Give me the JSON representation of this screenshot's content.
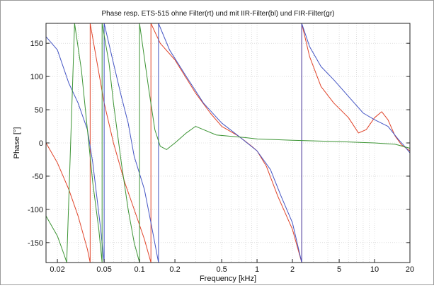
{
  "chart_data": {
    "type": "line",
    "title": "Phase resp.     ETS-515 ohne Filter(rt) und mit IIR-Filter(bl) und FIR-Filter(gr)",
    "xlabel": "Frequency [kHz]",
    "ylabel": "Phase [°]",
    "x_scale": "log",
    "xlim": [
      0.016,
      20
    ],
    "ylim": [
      -180,
      180
    ],
    "grid": true,
    "x_ticks": [
      0.02,
      0.05,
      0.1,
      0.2,
      0.5,
      1,
      2,
      5,
      10,
      20
    ],
    "x_tick_labels": [
      "0.02",
      "0.05",
      "0.1",
      "0.2",
      "0.5",
      "1",
      "2",
      "5",
      "10",
      "20"
    ],
    "y_ticks": [
      150,
      100,
      50,
      0,
      -50,
      -100,
      -150
    ],
    "y_tick_labels": [
      "150",
      "100",
      "50",
      "0",
      "-50",
      "-100",
      "-150"
    ],
    "series": [
      {
        "color": "#e0442a",
        "points": [
          [
            0.016,
            0
          ],
          [
            0.02,
            -30
          ],
          [
            0.025,
            -70
          ],
          [
            0.03,
            -110
          ],
          [
            0.036,
            -160
          ],
          [
            0.038,
            -180
          ],
          [
            0.038,
            180
          ],
          [
            0.05,
            60
          ],
          [
            0.06,
            0
          ],
          [
            0.075,
            -60
          ],
          [
            0.09,
            -100
          ],
          [
            0.11,
            -145
          ],
          [
            0.125,
            -180
          ],
          [
            0.125,
            180
          ],
          [
            0.15,
            150
          ],
          [
            0.2,
            125
          ],
          [
            0.3,
            75
          ],
          [
            0.4,
            45
          ],
          [
            0.5,
            25
          ],
          [
            0.7,
            10
          ],
          [
            0.9,
            -5
          ],
          [
            1.0,
            -12
          ],
          [
            1.2,
            -35
          ],
          [
            1.5,
            -80
          ],
          [
            2.0,
            -130
          ],
          [
            2.4,
            -180
          ],
          [
            2.4,
            180
          ],
          [
            2.8,
            130
          ],
          [
            3.5,
            85
          ],
          [
            4.5,
            60
          ],
          [
            6.0,
            38
          ],
          [
            7.3,
            15
          ],
          [
            8.5,
            20
          ],
          [
            10,
            38
          ],
          [
            11.5,
            47
          ],
          [
            13,
            35
          ],
          [
            15,
            10
          ],
          [
            17,
            -3
          ],
          [
            20,
            -12
          ]
        ]
      },
      {
        "color": "#4455c4",
        "points": [
          [
            0.016,
            160
          ],
          [
            0.02,
            140
          ],
          [
            0.025,
            90
          ],
          [
            0.03,
            60
          ],
          [
            0.036,
            20
          ],
          [
            0.04,
            -30
          ],
          [
            0.046,
            -120
          ],
          [
            0.05,
            -180
          ],
          [
            0.05,
            180
          ],
          [
            0.06,
            120
          ],
          [
            0.07,
            70
          ],
          [
            0.08,
            30
          ],
          [
            0.09,
            -20
          ],
          [
            0.11,
            -70
          ],
          [
            0.125,
            -120
          ],
          [
            0.145,
            -180
          ],
          [
            0.145,
            180
          ],
          [
            0.18,
            140
          ],
          [
            0.25,
            100
          ],
          [
            0.35,
            60
          ],
          [
            0.5,
            30
          ],
          [
            0.7,
            10
          ],
          [
            1.0,
            -12
          ],
          [
            1.3,
            -40
          ],
          [
            1.6,
            -80
          ],
          [
            2.0,
            -120
          ],
          [
            2.4,
            -180
          ],
          [
            2.4,
            180
          ],
          [
            2.8,
            145
          ],
          [
            3.5,
            115
          ],
          [
            4.5,
            95
          ],
          [
            6.0,
            70
          ],
          [
            8.0,
            45
          ],
          [
            10,
            35
          ],
          [
            13,
            25
          ],
          [
            16,
            5
          ],
          [
            18,
            -5
          ],
          [
            20,
            -15
          ]
        ]
      },
      {
        "color": "#3c9434",
        "points": [
          [
            0.016,
            -110
          ],
          [
            0.02,
            -140
          ],
          [
            0.023,
            -170
          ],
          [
            0.024,
            -180
          ],
          [
            0.028,
            180
          ],
          [
            0.032,
            110
          ],
          [
            0.036,
            20
          ],
          [
            0.04,
            -60
          ],
          [
            0.045,
            -130
          ],
          [
            0.048,
            -180
          ],
          [
            0.048,
            180
          ],
          [
            0.055,
            120
          ],
          [
            0.06,
            60
          ],
          [
            0.07,
            -30
          ],
          [
            0.08,
            -100
          ],
          [
            0.09,
            -150
          ],
          [
            0.1,
            -180
          ],
          [
            0.1,
            180
          ],
          [
            0.12,
            80
          ],
          [
            0.135,
            20
          ],
          [
            0.15,
            -5
          ],
          [
            0.17,
            -10
          ],
          [
            0.2,
            0
          ],
          [
            0.25,
            15
          ],
          [
            0.3,
            25
          ],
          [
            0.35,
            20
          ],
          [
            0.45,
            12
          ],
          [
            0.6,
            10
          ],
          [
            0.8,
            8
          ],
          [
            1.0,
            6
          ],
          [
            2.0,
            4
          ],
          [
            5.0,
            2
          ],
          [
            10,
            0
          ],
          [
            15,
            -2
          ],
          [
            20,
            -8
          ]
        ]
      }
    ]
  }
}
